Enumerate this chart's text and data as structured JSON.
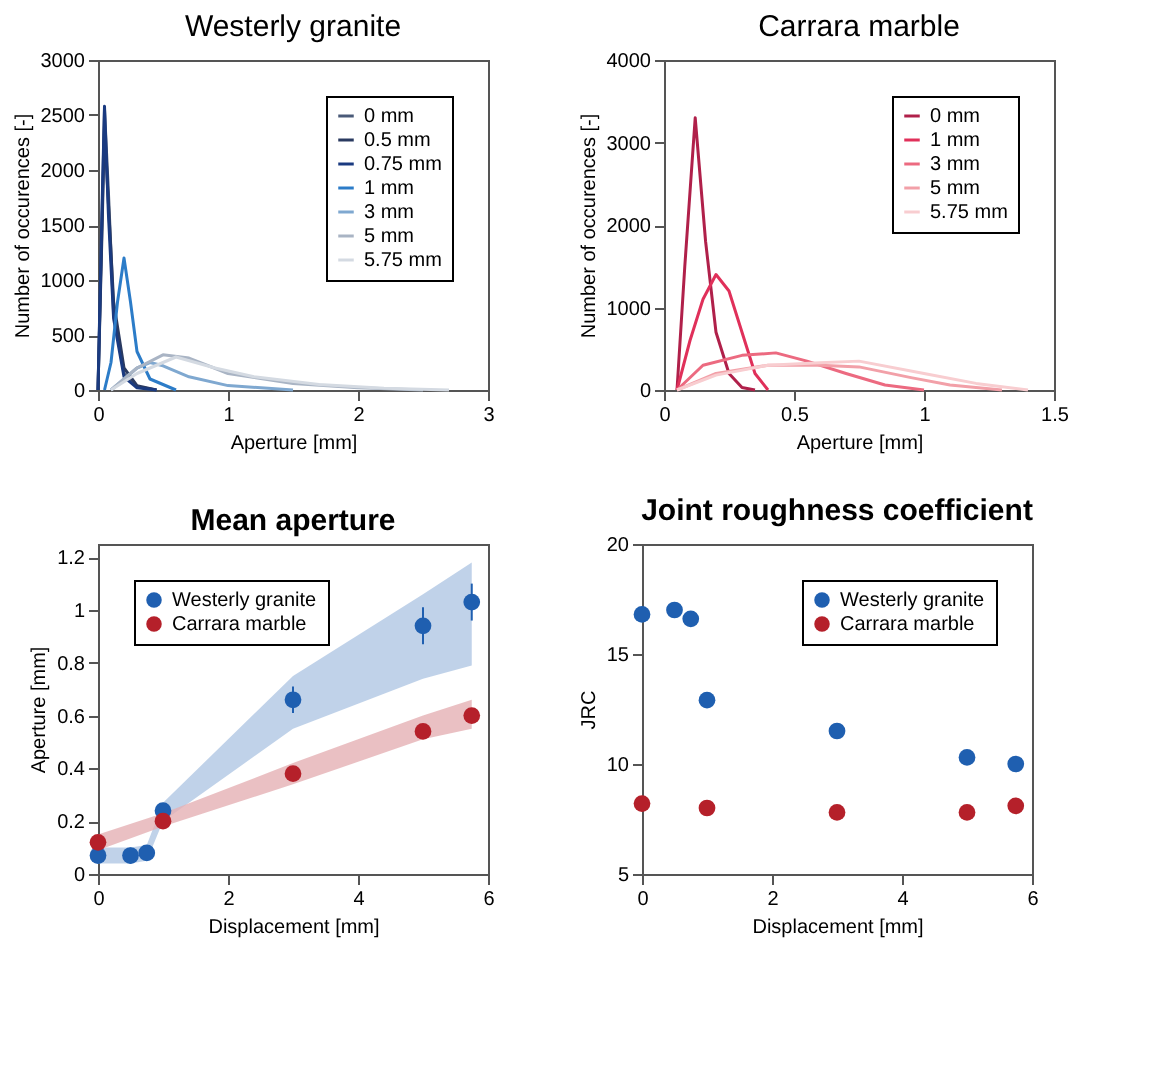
{
  "chart_data": [
    {
      "type": "line",
      "title": "Westerly granite",
      "xlabel": "Aperture [mm]",
      "ylabel": "Number of occurences [-]",
      "xlim": [
        0,
        3
      ],
      "xticks": [
        0,
        1,
        2,
        3
      ],
      "ylim": [
        0,
        3000
      ],
      "yticks": [
        0,
        500,
        1000,
        1500,
        2000,
        2500,
        3000
      ],
      "legend": "top right",
      "grid": false,
      "series": [
        {
          "name": "0 mm",
          "color": "#4a5a78",
          "x": [
            0,
            0.03,
            0.05,
            0.08,
            0.12,
            0.2,
            0.3,
            0.45
          ],
          "values": [
            0,
            1500,
            2550,
            1800,
            700,
            150,
            30,
            0
          ]
        },
        {
          "name": "0.5 mm",
          "color": "#2a3a60",
          "x": [
            0,
            0.03,
            0.05,
            0.08,
            0.12,
            0.2,
            0.3,
            0.45
          ],
          "values": [
            0,
            1400,
            2400,
            1700,
            800,
            200,
            40,
            0
          ]
        },
        {
          "name": "0.75 mm",
          "color": "#1a3a80",
          "x": [
            0,
            0.03,
            0.05,
            0.08,
            0.12,
            0.2,
            0.3,
            0.45
          ],
          "values": [
            0,
            1600,
            2580,
            1600,
            650,
            120,
            20,
            0
          ]
        },
        {
          "name": "1 mm",
          "color": "#2c7cc8",
          "x": [
            0.05,
            0.1,
            0.15,
            0.2,
            0.25,
            0.3,
            0.4,
            0.6
          ],
          "values": [
            0,
            250,
            800,
            1200,
            800,
            350,
            100,
            0
          ]
        },
        {
          "name": "3 mm",
          "color": "#7fa8d0",
          "x": [
            0.1,
            0.2,
            0.3,
            0.4,
            0.5,
            0.7,
            1.0,
            1.5
          ],
          "values": [
            0,
            100,
            200,
            250,
            220,
            120,
            40,
            0
          ]
        },
        {
          "name": "5 mm",
          "color": "#a9b4c4",
          "x": [
            0.1,
            0.3,
            0.5,
            0.7,
            1.0,
            1.5,
            2.0,
            2.5
          ],
          "values": [
            0,
            200,
            320,
            290,
            150,
            60,
            20,
            0
          ]
        },
        {
          "name": "5.75 mm",
          "color": "#d4dae2",
          "x": [
            0.1,
            0.3,
            0.6,
            0.9,
            1.2,
            1.7,
            2.2,
            2.7
          ],
          "values": [
            0,
            150,
            300,
            200,
            120,
            50,
            15,
            0
          ]
        }
      ]
    },
    {
      "type": "line",
      "title": "Carrara marble",
      "xlabel": "Aperture [mm]",
      "ylabel": "Number of occurences [-]",
      "xlim": [
        0,
        1.5
      ],
      "xticks": [
        0,
        0.5,
        1,
        1.5
      ],
      "ylim": [
        0,
        4000
      ],
      "yticks": [
        0,
        1000,
        2000,
        3000,
        4000
      ],
      "legend": "top right",
      "grid": false,
      "series": [
        {
          "name": "0 mm",
          "color": "#b0204a",
          "x": [
            0.05,
            0.08,
            0.12,
            0.16,
            0.2,
            0.25,
            0.3,
            0.35
          ],
          "values": [
            0,
            1500,
            3300,
            1800,
            700,
            200,
            30,
            0
          ]
        },
        {
          "name": "1 mm",
          "color": "#e0305a",
          "x": [
            0.05,
            0.1,
            0.15,
            0.2,
            0.25,
            0.3,
            0.35,
            0.4
          ],
          "values": [
            0,
            600,
            1100,
            1400,
            1200,
            700,
            200,
            0
          ]
        },
        {
          "name": "3 mm",
          "color": "#ec6a80",
          "x": [
            0.05,
            0.15,
            0.3,
            0.43,
            0.55,
            0.7,
            0.85,
            1.0
          ],
          "values": [
            0,
            300,
            420,
            450,
            350,
            200,
            60,
            0
          ]
        },
        {
          "name": "5 mm",
          "color": "#f2a0a8",
          "x": [
            0.05,
            0.2,
            0.4,
            0.6,
            0.75,
            0.95,
            1.1,
            1.3
          ],
          "values": [
            0,
            200,
            300,
            300,
            280,
            150,
            60,
            0
          ]
        },
        {
          "name": "5.75 mm",
          "color": "#f8cdd0",
          "x": [
            0.05,
            0.2,
            0.4,
            0.6,
            0.75,
            1.0,
            1.2,
            1.4
          ],
          "values": [
            0,
            180,
            300,
            330,
            350,
            200,
            80,
            0
          ]
        }
      ]
    },
    {
      "type": "scatter",
      "title": "Mean aperture",
      "xlabel": "Displacement [mm]",
      "ylabel": "Aperture [mm]",
      "xlim": [
        0,
        6
      ],
      "xticks": [
        0,
        2,
        4,
        6
      ],
      "ylim": [
        0,
        1.25
      ],
      "yticks": [
        0,
        0.2,
        0.4,
        0.6,
        0.8,
        1,
        1.2
      ],
      "legend": "top left",
      "grid": false,
      "marker": "circle",
      "series": [
        {
          "name": "Westerly granite",
          "color": "#1f5fb0",
          "x": [
            0,
            0.5,
            0.75,
            1,
            3,
            5,
            5.75
          ],
          "values": [
            0.07,
            0.07,
            0.08,
            0.24,
            0.66,
            0.94,
            1.03
          ],
          "errors": [
            0.02,
            0.03,
            0.03,
            0.02,
            0.05,
            0.07,
            0.07
          ],
          "lower": [
            0.04,
            0.04,
            0.05,
            0.2,
            0.55,
            0.74,
            0.79
          ],
          "upper": [
            0.1,
            0.1,
            0.11,
            0.27,
            0.75,
            1.06,
            1.18
          ]
        },
        {
          "name": "Carrara marble",
          "color": "#b5202a",
          "x": [
            0,
            1,
            3,
            5,
            5.75
          ],
          "values": [
            0.12,
            0.2,
            0.38,
            0.54,
            0.6
          ],
          "lower": [
            0.09,
            0.18,
            0.34,
            0.51,
            0.55
          ],
          "upper": [
            0.15,
            0.23,
            0.42,
            0.6,
            0.66
          ]
        }
      ]
    },
    {
      "type": "scatter",
      "title": "Joint roughness coefficient",
      "xlabel": "Displacement [mm]",
      "ylabel": "JRC",
      "xlim": [
        0,
        6
      ],
      "xticks": [
        0,
        2,
        4,
        6
      ],
      "ylim": [
        5,
        20
      ],
      "yticks": [
        5,
        10,
        15,
        20
      ],
      "legend": "top right",
      "grid": false,
      "marker": "circle",
      "series": [
        {
          "name": "Westerly granite",
          "color": "#1f5fb0",
          "x": [
            0,
            0.5,
            0.75,
            1,
            3,
            5,
            5.75
          ],
          "values": [
            16.8,
            17,
            16.6,
            12.9,
            11.5,
            10.3,
            10
          ]
        },
        {
          "name": "Carrara marble",
          "color": "#b5202a",
          "x": [
            0,
            1,
            3,
            5,
            5.75
          ],
          "values": [
            8.2,
            8,
            7.8,
            7.8,
            8.1
          ]
        }
      ]
    }
  ]
}
